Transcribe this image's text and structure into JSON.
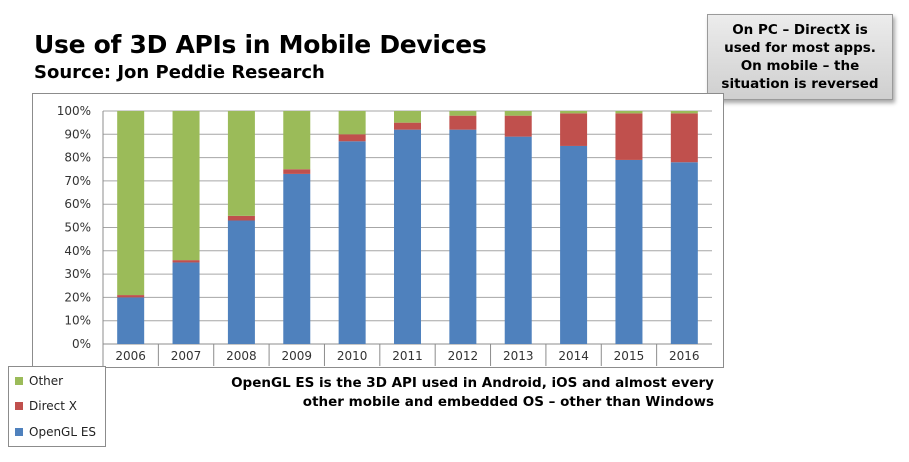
{
  "title": "Use of 3D APIs in Mobile Devices",
  "subtitle": "Source: Jon Peddie Research",
  "callout": {
    "lines": [
      "On PC – DirectX is",
      "used for most apps.",
      "On mobile – the",
      "situation is reversed"
    ]
  },
  "note": {
    "lines": [
      "OpenGL ES is the 3D API used in Android, iOS and almost every",
      "other mobile and embedded OS – other than Windows"
    ]
  },
  "chart_data": {
    "type": "bar",
    "stacked": true,
    "categories": [
      "2006",
      "2007",
      "2008",
      "2009",
      "2010",
      "2011",
      "2012",
      "2013",
      "2014",
      "2015",
      "2016"
    ],
    "series": [
      {
        "name": "OpenGL ES",
        "color": "#4f81bd",
        "values": [
          20,
          35,
          53,
          73,
          87,
          92,
          92,
          89,
          85,
          79,
          78
        ]
      },
      {
        "name": "Direct X",
        "color": "#c0504d",
        "values": [
          1,
          1,
          2,
          2,
          3,
          3,
          6,
          9,
          14,
          20,
          21
        ]
      },
      {
        "name": "Other",
        "color": "#9bbb59",
        "values": [
          79,
          64,
          45,
          25,
          10,
          5,
          2,
          2,
          1,
          1,
          1
        ]
      }
    ],
    "yticks": [
      "0%",
      "10%",
      "20%",
      "30%",
      "40%",
      "50%",
      "60%",
      "70%",
      "80%",
      "90%",
      "100%"
    ],
    "ylim": [
      0,
      100
    ],
    "grid": true,
    "legend": [
      "Other",
      "Direct X",
      "OpenGL ES"
    ],
    "legend_position": "bottom-left"
  }
}
